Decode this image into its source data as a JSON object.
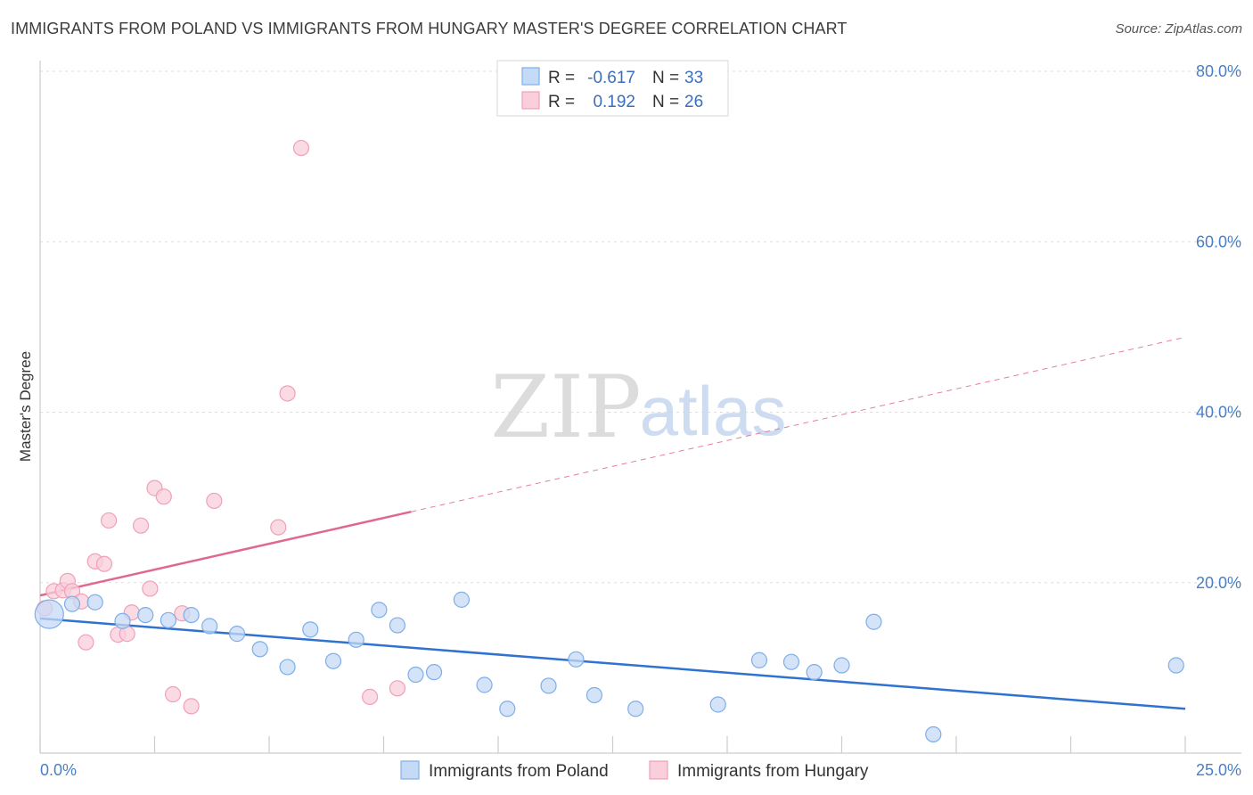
{
  "title": "IMMIGRANTS FROM POLAND VS IMMIGRANTS FROM HUNGARY MASTER'S DEGREE CORRELATION CHART",
  "source": "Source: ZipAtlas.com",
  "watermark": {
    "zip": "ZIP",
    "atlas": "atlas"
  },
  "chart_data": {
    "type": "scatter",
    "ylabel": "Master's Degree",
    "xlim": [
      0,
      25
    ],
    "ylim": [
      0,
      85
    ],
    "x_tick_labels": [
      {
        "value": 0,
        "label": "0.0%"
      },
      {
        "value": 25,
        "label": "25.0%"
      }
    ],
    "y_tick_labels": [
      {
        "value": 20,
        "label": "20.0%"
      },
      {
        "value": 40,
        "label": "40.0%"
      },
      {
        "value": 60,
        "label": "60.0%"
      },
      {
        "value": 80,
        "label": "80.0%"
      }
    ],
    "gridlines": [
      20,
      40,
      60,
      80
    ],
    "legend": {
      "r_label": "R =",
      "n_label": "N =",
      "entries": [
        {
          "r": "-0.617",
          "n": "33"
        },
        {
          "r": "0.192",
          "n": "26"
        }
      ]
    },
    "series": [
      {
        "name": "Immigrants from Poland",
        "color": "#7eaee8",
        "fill": "#c5daf5",
        "line_color": "#2f72d0",
        "trend": {
          "x": [
            0,
            25
          ],
          "y": [
            15.8,
            5.2
          ],
          "dashed_from": null
        },
        "points": [
          {
            "x": 0.2,
            "y": 16.3,
            "big": true
          },
          {
            "x": 0.7,
            "y": 17.5
          },
          {
            "x": 1.2,
            "y": 17.7
          },
          {
            "x": 1.8,
            "y": 15.5
          },
          {
            "x": 2.3,
            "y": 16.2
          },
          {
            "x": 2.8,
            "y": 15.6
          },
          {
            "x": 3.3,
            "y": 16.2
          },
          {
            "x": 3.7,
            "y": 14.9
          },
          {
            "x": 4.3,
            "y": 14.0
          },
          {
            "x": 4.8,
            "y": 12.2
          },
          {
            "x": 5.4,
            "y": 10.1
          },
          {
            "x": 5.9,
            "y": 14.5
          },
          {
            "x": 6.4,
            "y": 10.8
          },
          {
            "x": 6.9,
            "y": 13.3
          },
          {
            "x": 7.4,
            "y": 16.8
          },
          {
            "x": 7.8,
            "y": 15.0
          },
          {
            "x": 8.2,
            "y": 9.2
          },
          {
            "x": 8.6,
            "y": 9.5
          },
          {
            "x": 9.2,
            "y": 18.0
          },
          {
            "x": 9.7,
            "y": 8.0
          },
          {
            "x": 10.2,
            "y": 5.2
          },
          {
            "x": 11.1,
            "y": 7.9
          },
          {
            "x": 11.7,
            "y": 11.0
          },
          {
            "x": 12.1,
            "y": 6.8
          },
          {
            "x": 13.0,
            "y": 5.2
          },
          {
            "x": 14.8,
            "y": 5.7
          },
          {
            "x": 15.7,
            "y": 10.9
          },
          {
            "x": 16.4,
            "y": 10.7
          },
          {
            "x": 16.9,
            "y": 9.5
          },
          {
            "x": 17.5,
            "y": 10.3
          },
          {
            "x": 18.2,
            "y": 15.4
          },
          {
            "x": 19.5,
            "y": 2.2
          },
          {
            "x": 24.8,
            "y": 10.3
          }
        ]
      },
      {
        "name": "Immigrants from Hungary",
        "color": "#f0a0b8",
        "fill": "#f8cfdb",
        "line_color": "#e06890",
        "trend": {
          "x": [
            0,
            25
          ],
          "y": [
            18.5,
            48.8
          ],
          "solid_until": 8.1
        },
        "points": [
          {
            "x": 0.1,
            "y": 17.0
          },
          {
            "x": 0.3,
            "y": 19.0
          },
          {
            "x": 0.5,
            "y": 19.1
          },
          {
            "x": 0.6,
            "y": 20.2
          },
          {
            "x": 0.7,
            "y": 19.0
          },
          {
            "x": 0.9,
            "y": 17.8
          },
          {
            "x": 1.0,
            "y": 13.0
          },
          {
            "x": 1.2,
            "y": 22.5
          },
          {
            "x": 1.4,
            "y": 22.2
          },
          {
            "x": 1.5,
            "y": 27.3
          },
          {
            "x": 1.7,
            "y": 13.9
          },
          {
            "x": 1.9,
            "y": 14.0
          },
          {
            "x": 2.0,
            "y": 16.5
          },
          {
            "x": 2.2,
            "y": 26.7
          },
          {
            "x": 2.4,
            "y": 19.3
          },
          {
            "x": 2.5,
            "y": 31.1
          },
          {
            "x": 2.7,
            "y": 30.1
          },
          {
            "x": 2.9,
            "y": 6.9
          },
          {
            "x": 3.1,
            "y": 16.4
          },
          {
            "x": 3.3,
            "y": 5.5
          },
          {
            "x": 3.8,
            "y": 29.6
          },
          {
            "x": 5.2,
            "y": 26.5
          },
          {
            "x": 5.4,
            "y": 42.2
          },
          {
            "x": 5.7,
            "y": 71.0
          },
          {
            "x": 7.2,
            "y": 6.6
          },
          {
            "x": 7.8,
            "y": 7.6
          }
        ]
      }
    ]
  }
}
